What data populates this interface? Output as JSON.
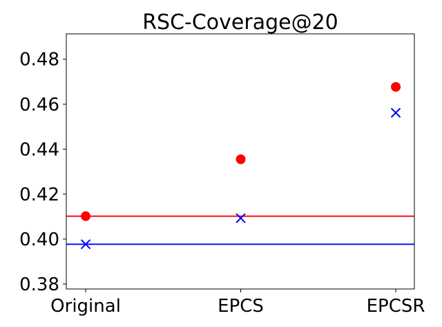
{
  "chart_data": {
    "type": "scatter",
    "title": "RSC-Coverage@20",
    "categories": [
      "Original",
      "EPCS",
      "EPCSR"
    ],
    "series": [
      {
        "color": "#ff0000",
        "marker": "circle",
        "values": [
          0.4102,
          0.4355,
          0.4677
        ]
      },
      {
        "color": "#0000ff",
        "marker": "x",
        "values": [
          0.3977,
          0.4093,
          0.4562
        ]
      }
    ],
    "hlines": [
      {
        "color": "#ff0000",
        "value": 0.4102
      },
      {
        "color": "#0000ff",
        "value": 0.3977
      }
    ],
    "xlim": [
      -0.125,
      2.12
    ],
    "ylim": [
      0.3778,
      0.4913
    ],
    "yticks": [
      {
        "value": 0.38,
        "label": "0.38"
      },
      {
        "value": 0.4,
        "label": "0.40"
      },
      {
        "value": 0.42,
        "label": "0.42"
      },
      {
        "value": 0.44,
        "label": "0.44"
      },
      {
        "value": 0.46,
        "label": "0.46"
      },
      {
        "value": 0.48,
        "label": "0.48"
      }
    ]
  }
}
